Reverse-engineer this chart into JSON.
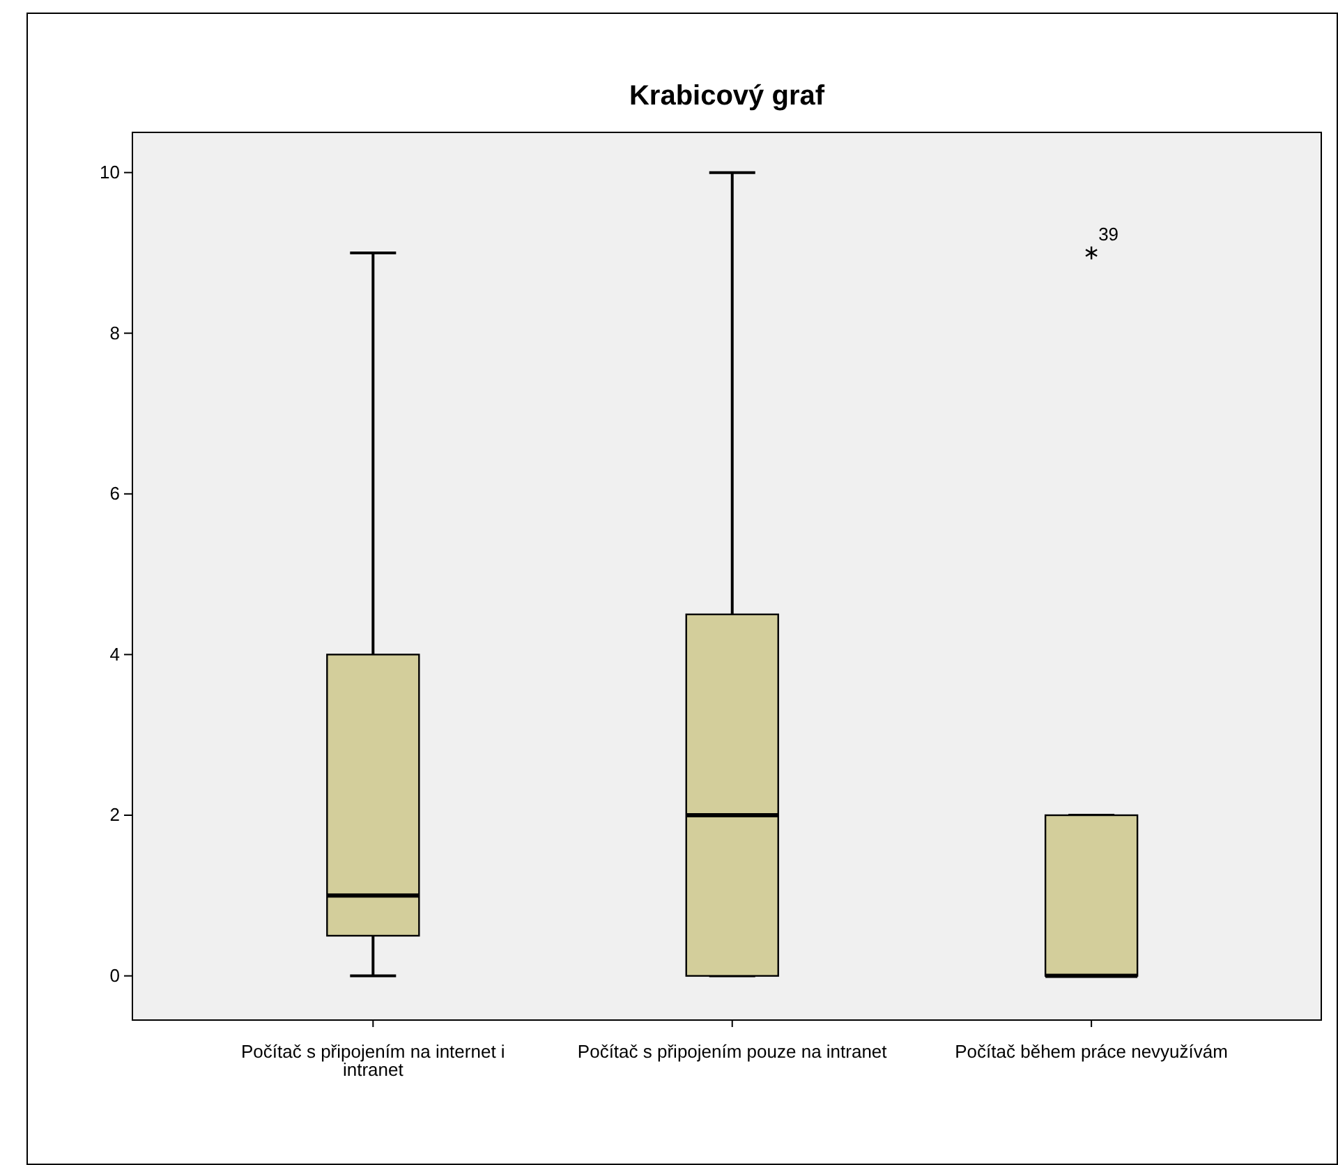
{
  "chart_data": {
    "type": "box",
    "title": "Krabicový graf",
    "categories": [
      "Počítač s připojením na internet i intranet",
      "Počítač s připojením pouze na intranet",
      "Počítač během práce nevyužívám"
    ],
    "boxes": [
      {
        "low": 0,
        "q1": 0.5,
        "median": 1,
        "q3": 4,
        "high": 9
      },
      {
        "low": 0,
        "q1": 0,
        "median": 2,
        "q3": 4.5,
        "high": 10
      },
      {
        "low": 0,
        "q1": 0,
        "median": 0,
        "q3": 2,
        "high": 2,
        "outliers": [
          9
        ]
      }
    ],
    "color": "#d3ce9b",
    "ylim": [
      -0.55,
      10.5
    ],
    "yticks": [
      0,
      2,
      4,
      6,
      8,
      10
    ],
    "grid": false,
    "marker": "star",
    "annotations": [
      "39"
    ]
  }
}
